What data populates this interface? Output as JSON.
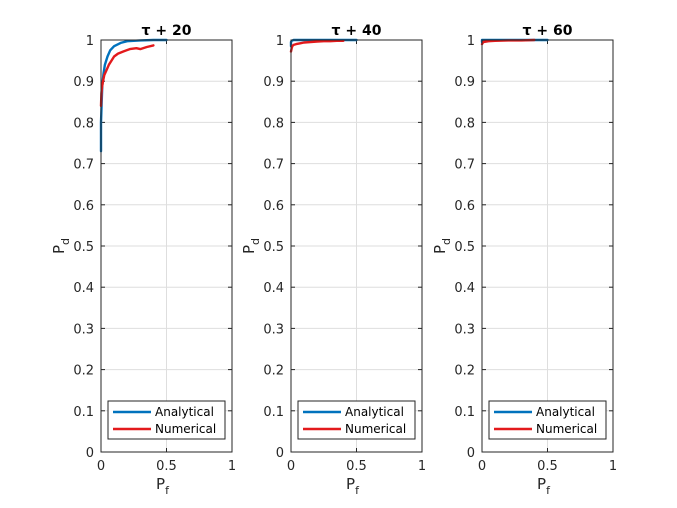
{
  "chart_data": [
    {
      "type": "line",
      "title": "τ + 20",
      "xlabel": "P",
      "xlabel_sub": "f",
      "ylabel": "P",
      "ylabel_sub": "d",
      "xlim": [
        0,
        1
      ],
      "ylim": [
        0,
        1
      ],
      "xticks": [
        "0",
        "0.5",
        "1"
      ],
      "yticks": [
        "0",
        "0.1",
        "0.2",
        "0.3",
        "0.4",
        "0.5",
        "0.6",
        "0.7",
        "0.8",
        "0.9",
        "1"
      ],
      "grid": true,
      "legend_position": "bottom",
      "series": [
        {
          "name": "Analytical",
          "color": "#0072bd",
          "x": [
            0,
            0,
            0.005,
            0.01,
            0.02,
            0.03,
            0.05,
            0.07,
            0.1,
            0.15,
            0.2,
            0.3,
            0.4,
            0.5
          ],
          "y": [
            0.73,
            0.8,
            0.85,
            0.89,
            0.92,
            0.94,
            0.96,
            0.975,
            0.985,
            0.993,
            0.997,
            0.999,
            1.0,
            1.0
          ]
        },
        {
          "name": "Numerical",
          "color": "#e31a1c",
          "x": [
            0,
            0.003,
            0.008,
            0.015,
            0.025,
            0.04,
            0.06,
            0.08,
            0.1,
            0.13,
            0.17,
            0.22,
            0.27,
            0.3,
            0.35,
            0.4
          ],
          "y": [
            0.84,
            0.87,
            0.885,
            0.9,
            0.915,
            0.925,
            0.94,
            0.95,
            0.96,
            0.967,
            0.972,
            0.978,
            0.98,
            0.978,
            0.983,
            0.987
          ]
        }
      ]
    },
    {
      "type": "line",
      "title": "τ + 40",
      "xlabel": "P",
      "xlabel_sub": "f",
      "ylabel": "P",
      "ylabel_sub": "d",
      "xlim": [
        0,
        1
      ],
      "ylim": [
        0,
        1
      ],
      "xticks": [
        "0",
        "0.5",
        "1"
      ],
      "yticks": [
        "0",
        "0.1",
        "0.2",
        "0.3",
        "0.4",
        "0.5",
        "0.6",
        "0.7",
        "0.8",
        "0.9",
        "1"
      ],
      "grid": true,
      "legend_position": "bottom",
      "series": [
        {
          "name": "Analytical",
          "color": "#0072bd",
          "x": [
            0,
            0,
            0.005,
            0.02,
            0.05,
            0.1,
            0.3,
            0.5
          ],
          "y": [
            0.985,
            0.995,
            0.998,
            1.0,
            1.0,
            1.0,
            1.0,
            1.0
          ]
        },
        {
          "name": "Numerical",
          "color": "#e31a1c",
          "x": [
            0,
            0.005,
            0.01,
            0.02,
            0.04,
            0.07,
            0.1,
            0.15,
            0.2,
            0.25,
            0.3,
            0.35,
            0.4
          ],
          "y": [
            0.972,
            0.98,
            0.985,
            0.988,
            0.99,
            0.992,
            0.994,
            0.995,
            0.996,
            0.997,
            0.997,
            0.998,
            0.998
          ]
        }
      ]
    },
    {
      "type": "line",
      "title": "τ + 60",
      "xlabel": "P",
      "xlabel_sub": "f",
      "ylabel": "P",
      "ylabel_sub": "d",
      "xlim": [
        0,
        1
      ],
      "ylim": [
        0,
        1
      ],
      "xticks": [
        "0",
        "0.5",
        "1"
      ],
      "yticks": [
        "0",
        "0.1",
        "0.2",
        "0.3",
        "0.4",
        "0.5",
        "0.6",
        "0.7",
        "0.8",
        "0.9",
        "1"
      ],
      "grid": true,
      "legend_position": "bottom",
      "series": [
        {
          "name": "Analytical",
          "color": "#0072bd",
          "x": [
            0,
            0,
            0.01,
            0.1,
            0.3,
            0.5
          ],
          "y": [
            0.995,
            1.0,
            1.0,
            1.0,
            1.0,
            1.0
          ]
        },
        {
          "name": "Numerical",
          "color": "#e31a1c",
          "x": [
            0,
            0.01,
            0.05,
            0.1,
            0.2,
            0.3,
            0.4
          ],
          "y": [
            0.99,
            0.995,
            0.997,
            0.998,
            0.999,
            0.999,
            1.0
          ]
        }
      ]
    }
  ]
}
